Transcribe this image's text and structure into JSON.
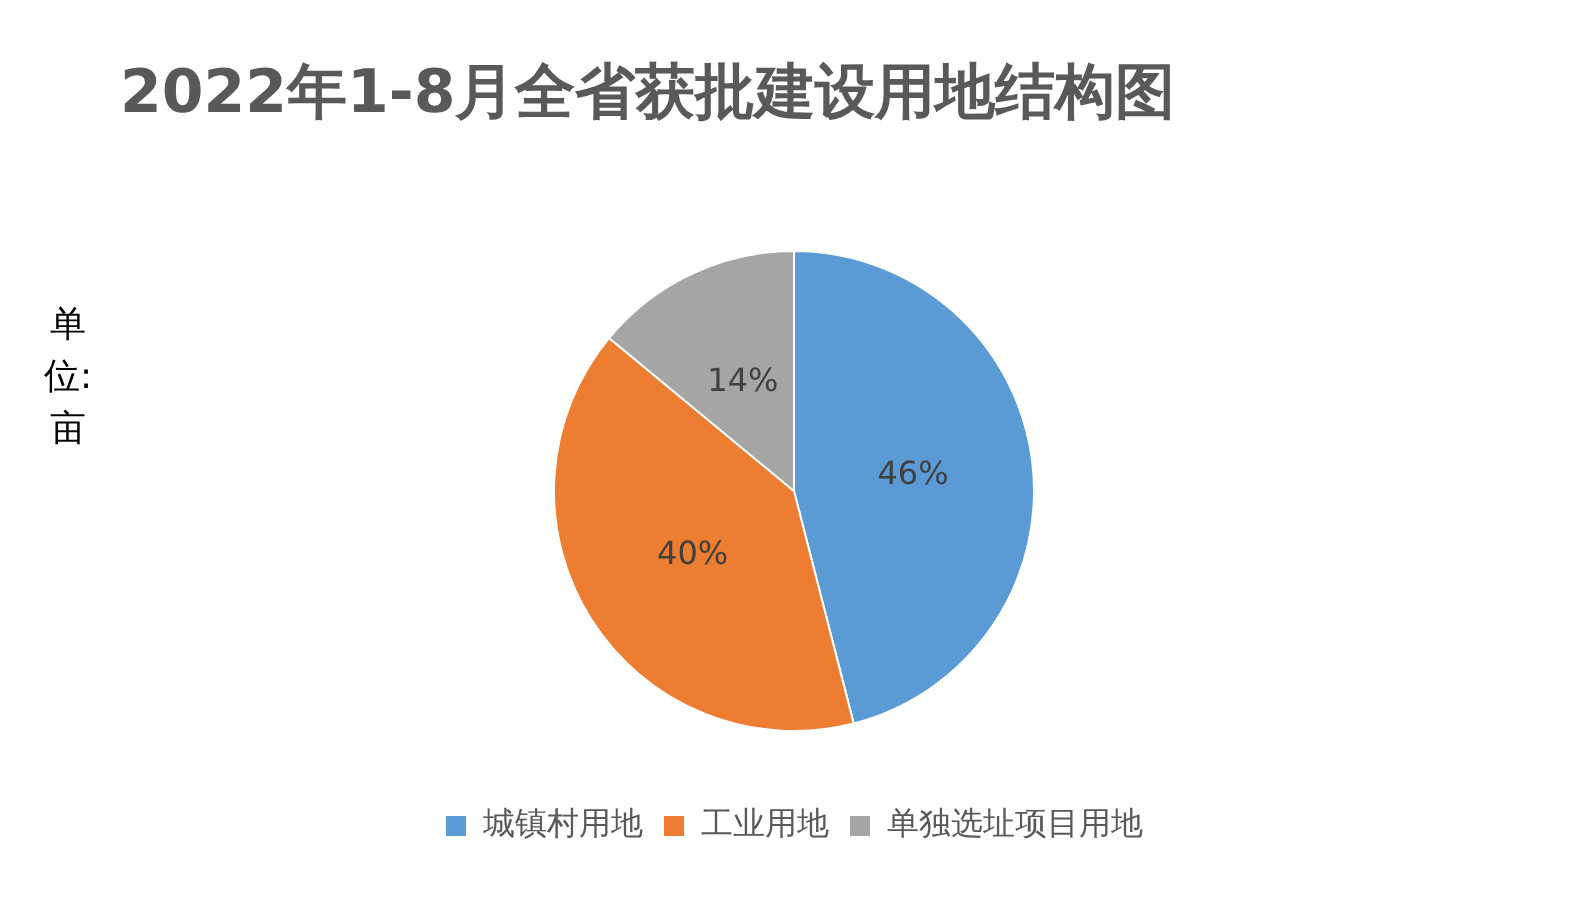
{
  "chart_data": {
    "type": "pie",
    "title": "2022年1-8月全省获批建设用地结构图",
    "ylabel": "单位:亩",
    "categories": [
      "城镇村用地",
      "工业用地",
      "单独选址项目用地"
    ],
    "values": [
      46,
      40,
      14
    ],
    "colors": [
      "#5b9bd5",
      "#ed7d31",
      "#a5a5a5"
    ],
    "value_labels": [
      "46%",
      "40%",
      "14%"
    ],
    "legend": "bottom"
  }
}
